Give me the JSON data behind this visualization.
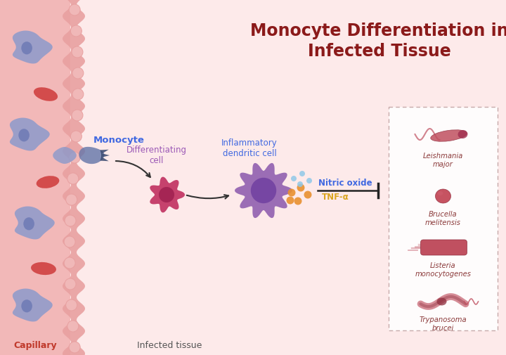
{
  "title_line1": "Monocyte Differentiation in",
  "title_line2": "Infected Tissue",
  "title_color": "#8B1A1A",
  "title_fontsize": 17,
  "bg_color": "#FDE8E8",
  "capillary_bg": "#F2B8B8",
  "tissue_bg": "#FDEAEA",
  "capillary_label": "Capillary",
  "capillary_label_color": "#C0392B",
  "tissue_label": "Infected tissue",
  "tissue_label_color": "#555555",
  "monocyte_label": "Monocyte",
  "monocyte_label_color": "#4169E1",
  "diff_cell_label": "Differentiating\ncell",
  "diff_cell_label_color": "#9B59B6",
  "inflam_dc_label": "Inflammatory\ndendritic cell",
  "inflam_dc_label_color": "#4169E1",
  "nitric_oxide_label": "Nitric oxide",
  "nitric_oxide_color": "#4169E1",
  "tnf_label": "TNF-α",
  "tnf_color": "#DAA520",
  "pathogen_labels": [
    "Leishmania\nmajor",
    "Brucella\nmelitensis",
    "Listeria\nmonocytogenes",
    "Trypanosoma\nbrucei"
  ],
  "pathogen_label_color": "#8B3A3A",
  "monocyte_color": "#8899CC",
  "monocyte_nucleus_color": "#5566AA",
  "diff_cell_color": "#C03060",
  "dc_cell_color": "#9060B0",
  "dc_inner_color": "#7040A0",
  "rbc_color": "#D04040",
  "dot_colors_blue": "#90C8E8",
  "dot_colors_orange": "#E89030",
  "capillary_wall_color": "#E8A0A0",
  "capillary_wall_cell_color": "#F0B8B8",
  "box_border_color": "#C0A0A0",
  "box_bg": "#FFFFFF",
  "pathogen_body_color": "#C05060",
  "pathogen_edge_color": "#903040",
  "arrow_color": "#333333",
  "inhibit_line_color": "#222222"
}
